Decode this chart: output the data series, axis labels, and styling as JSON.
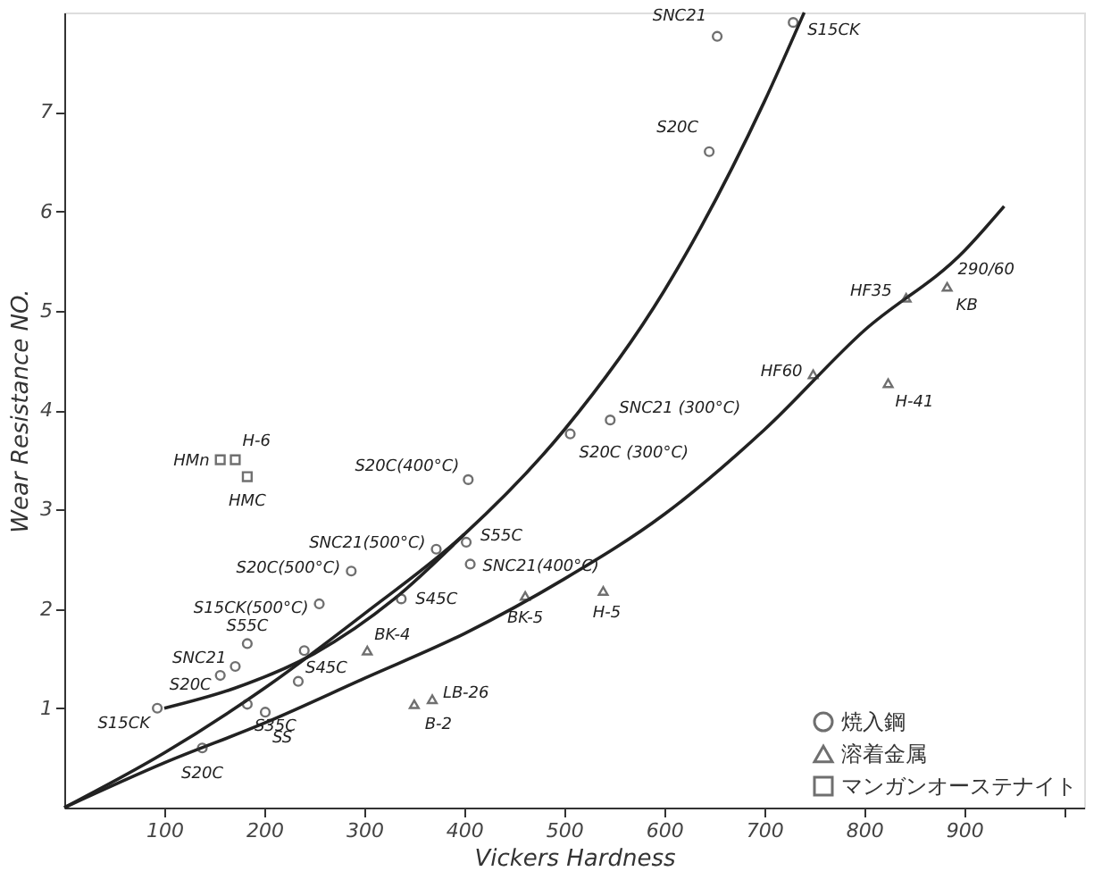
{
  "chart_data": {
    "type": "scatter",
    "xlabel": "Vickers  Hardness",
    "ylabel": "Wear  Resistance  NO.",
    "xlim": [
      0,
      1020
    ],
    "ylim": [
      0,
      8
    ],
    "xticks": [
      100,
      200,
      300,
      400,
      500,
      600,
      700,
      800,
      900,
      {
        "value": 1000,
        "label": null
      }
    ],
    "yticks": [
      1,
      2,
      3,
      4,
      5,
      6,
      7
    ],
    "grid": false,
    "legend": "bottom right",
    "series": [
      {
        "name": "焼入鋼",
        "color": "#333333",
        "marker": "circle",
        "x": [
          653,
          729,
          645,
          546,
          506,
          404,
          372,
          402,
          406,
          337,
          287,
          255,
          183,
          171,
          156,
          93,
          234,
          183,
          138,
          201,
          240
        ],
        "values": [
          7.76,
          7.9,
          6.6,
          3.9,
          3.76,
          3.3,
          2.6,
          2.67,
          2.45,
          2.1,
          2.38,
          2.05,
          1.65,
          1.42,
          1.33,
          1.0,
          1.27,
          1.04,
          0.6,
          0.96,
          1.58
        ]
      },
      {
        "name": "溶着金属",
        "color": "#333333",
        "marker": "triangle",
        "x": [
          303,
          368,
          350,
          461,
          539,
          749,
          824,
          842,
          883
        ],
        "values": [
          1.58,
          1.09,
          1.04,
          2.13,
          2.18,
          4.36,
          4.27,
          5.13,
          5.24
        ]
      },
      {
        "name": "マンガンオーステナイト",
        "color": "#333333",
        "marker": "square",
        "x": [
          171,
          156,
          183
        ],
        "values": [
          3.5,
          3.5,
          3.33
        ]
      },
      {
        "type": "line",
        "color": "#222222",
        "x": [
          0,
          100,
          200,
          300,
          400,
          500,
          600,
          700,
          740
        ],
        "values": [
          0,
          0.55,
          1.2,
          1.95,
          2.75,
          3.8,
          5.2,
          7.1,
          8.0
        ]
      },
      {
        "type": "line",
        "color": "#222222",
        "x": [
          100,
          170,
          250,
          330,
          400
        ],
        "values": [
          1.0,
          1.2,
          1.55,
          2.1,
          2.75
        ]
      },
      {
        "type": "line",
        "color": "#222222",
        "x": [
          0,
          100,
          200,
          300,
          400,
          500,
          600,
          700,
          800,
          900,
          940
        ],
        "values": [
          0,
          0.45,
          0.85,
          1.3,
          1.75,
          2.3,
          2.95,
          3.8,
          4.8,
          5.6,
          6.05
        ]
      }
    ],
    "annotations": [
      {
        "text": "SNC21",
        "x": 653,
        "y": 7.76
      },
      {
        "text": "S15CK",
        "x": 729,
        "y": 7.9
      },
      {
        "text": "S20C",
        "x": 645,
        "y": 6.6
      },
      {
        "text": "SNC21 (300°C)",
        "x": 546,
        "y": 3.9
      },
      {
        "text": "S20C (300°C)",
        "x": 506,
        "y": 3.76
      },
      {
        "text": "S20C(400°C)",
        "x": 404,
        "y": 3.3
      },
      {
        "text": "SNC21(500°C)",
        "x": 372,
        "y": 2.6
      },
      {
        "text": "S55C",
        "x": 402,
        "y": 2.67
      },
      {
        "text": "SNC21(400°C)",
        "x": 406,
        "y": 2.45
      },
      {
        "text": "S45C",
        "x": 337,
        "y": 2.1
      },
      {
        "text": "S20C(500°C)",
        "x": 287,
        "y": 2.38
      },
      {
        "text": "S15CK(500°C)",
        "x": 255,
        "y": 2.05
      },
      {
        "text": "S55C",
        "x": 183,
        "y": 1.65
      },
      {
        "text": "SNC21",
        "x": 171,
        "y": 1.42
      },
      {
        "text": "S20C",
        "x": 156,
        "y": 1.33
      },
      {
        "text": "S15CK",
        "x": 93,
        "y": 1.0
      },
      {
        "text": "S45C",
        "x": 234,
        "y": 1.27
      },
      {
        "text": "S35C",
        "x": 183,
        "y": 1.04
      },
      {
        "text": "S20C",
        "x": 138,
        "y": 0.6
      },
      {
        "text": "SS",
        "x": 201,
        "y": 0.96
      },
      {
        "text": "BK-4",
        "x": 303,
        "y": 1.58
      },
      {
        "text": "LB-26",
        "x": 368,
        "y": 1.09
      },
      {
        "text": "B-2",
        "x": 350,
        "y": 1.04
      },
      {
        "text": "BK-5",
        "x": 461,
        "y": 2.13
      },
      {
        "text": "H-5",
        "x": 539,
        "y": 2.18
      },
      {
        "text": "HF60",
        "x": 749,
        "y": 4.36
      },
      {
        "text": "H-41",
        "x": 824,
        "y": 4.27
      },
      {
        "text": "HF35",
        "x": 842,
        "y": 5.13
      },
      {
        "text": "KB",
        "x": 883,
        "y": 5.24
      },
      {
        "text": "290/60",
        "x": 883,
        "y": 5.24
      },
      {
        "text": "H-6",
        "x": 171,
        "y": 3.5
      },
      {
        "text": "HMn",
        "x": 156,
        "y": 3.5
      },
      {
        "text": "HMC",
        "x": 183,
        "y": 3.33
      }
    ]
  }
}
